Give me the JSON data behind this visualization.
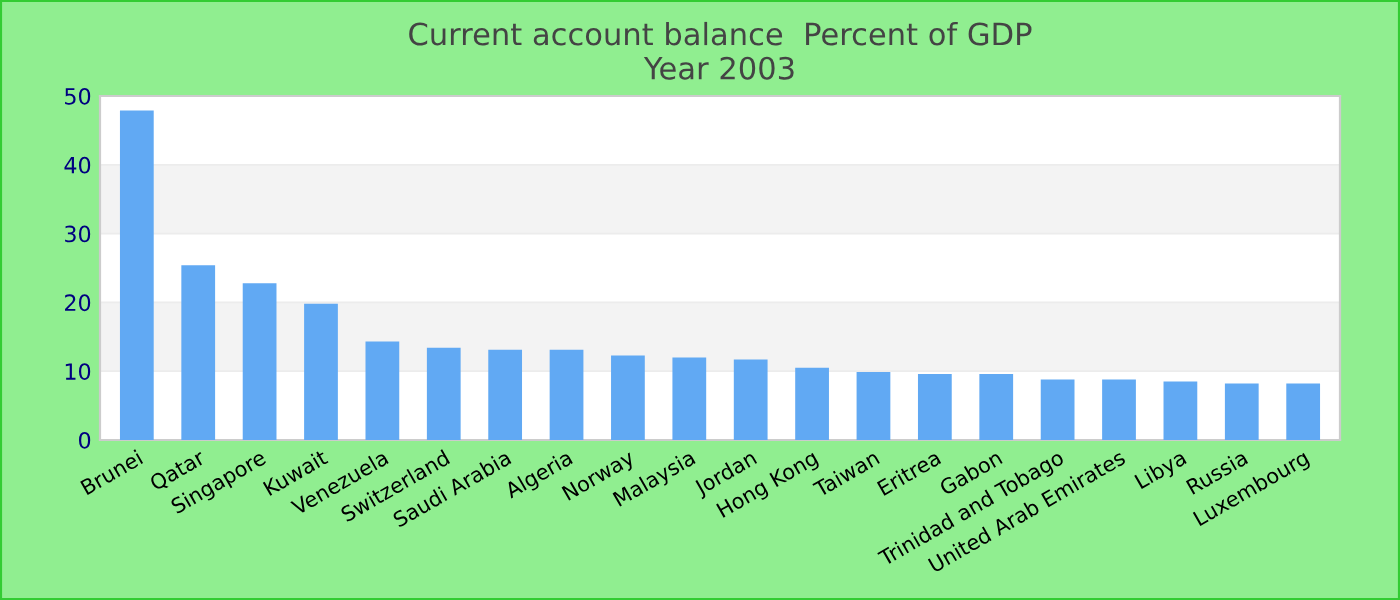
{
  "chart_data": {
    "type": "bar",
    "title": "Current account balance  Percent of GDP\nYear 2003",
    "categories": [
      "Brunei",
      "Qatar",
      "Singapore",
      "Kuwait",
      "Venezuela",
      "Switzerland",
      "Saudi Arabia",
      "Algeria",
      "Norway",
      "Malaysia",
      "Jordan",
      "Hong Kong",
      "Taiwan",
      "Eritrea",
      "Gabon",
      "Trinidad and Tobago",
      "United Arab Emirates",
      "Libya",
      "Russia",
      "Luxembourg"
    ],
    "values": [
      47.9,
      25.4,
      22.8,
      19.8,
      14.3,
      13.4,
      13.1,
      13.1,
      12.3,
      12.0,
      11.7,
      10.5,
      9.9,
      9.6,
      9.6,
      8.8,
      8.8,
      8.5,
      8.2,
      8.2
    ],
    "color": "#61a9f3",
    "ylim": [
      0,
      50
    ],
    "yticks": [
      0,
      10,
      20,
      30,
      40,
      50
    ],
    "grid": "y",
    "legend": false
  }
}
